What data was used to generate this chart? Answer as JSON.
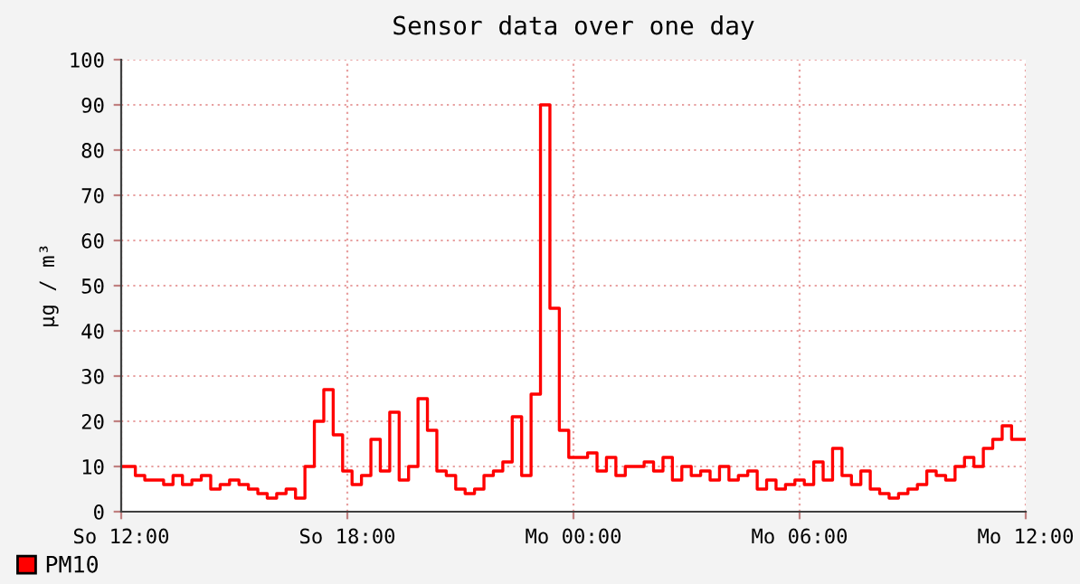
{
  "chart_data": {
    "type": "step",
    "title": "Sensor data over one day",
    "ylabel": "µg / m³",
    "categories": [
      "So 12:00",
      null,
      null,
      null,
      null,
      null,
      null,
      null,
      null,
      null,
      null,
      null,
      null,
      null,
      null,
      null,
      null,
      null,
      null,
      null,
      null,
      null,
      null,
      null,
      "So 18:00",
      null,
      null,
      null,
      null,
      null,
      null,
      null,
      null,
      null,
      null,
      null,
      null,
      null,
      null,
      null,
      null,
      null,
      null,
      null,
      null,
      null,
      null,
      null,
      "Mo 00:00",
      null,
      null,
      null,
      null,
      null,
      null,
      null,
      null,
      null,
      null,
      null,
      null,
      null,
      null,
      null,
      null,
      null,
      null,
      null,
      null,
      null,
      null,
      null,
      "Mo 06:00",
      null,
      null,
      null,
      null,
      null,
      null,
      null,
      null,
      null,
      null,
      null,
      null,
      null,
      null,
      null,
      null,
      null,
      null,
      null,
      null,
      null,
      null,
      null,
      "Mo 12:00"
    ],
    "series": [
      {
        "name": "PM10",
        "color": "#ff0000",
        "values": [
          10,
          10,
          8,
          7,
          7,
          6,
          8,
          6,
          7,
          8,
          5,
          6,
          7,
          6,
          5,
          4,
          3,
          4,
          5,
          3,
          10,
          20,
          27,
          17,
          9,
          6,
          8,
          16,
          9,
          22,
          7,
          10,
          25,
          18,
          9,
          8,
          5,
          4,
          5,
          8,
          9,
          11,
          21,
          8,
          26,
          90,
          45,
          18,
          12,
          12,
          13,
          9,
          12,
          8,
          10,
          10,
          11,
          9,
          12,
          7,
          10,
          8,
          9,
          7,
          10,
          7,
          8,
          9,
          5,
          7,
          5,
          6,
          7,
          6,
          11,
          7,
          14,
          8,
          6,
          9,
          5,
          4,
          3,
          4,
          5,
          6,
          9,
          8,
          7,
          10,
          12,
          10,
          14,
          16,
          19,
          16,
          16
        ]
      }
    ],
    "ylim": [
      0,
      100
    ],
    "yticks": [
      0,
      10,
      20,
      30,
      40,
      50,
      60,
      70,
      80,
      90,
      100
    ],
    "grid": true,
    "legend": "bottom left"
  }
}
